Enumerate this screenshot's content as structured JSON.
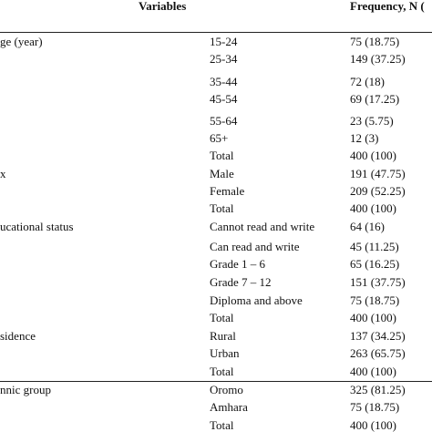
{
  "table": {
    "header": {
      "variables": "Variables",
      "frequency": "Frequency, N ("
    },
    "groups": [
      {
        "label": "ge (year)",
        "rows": [
          {
            "category": "15-24",
            "value": "75 (18.75)"
          },
          {
            "category": "25-34",
            "value": "149 (37.25)"
          },
          {
            "category": "35-44",
            "value": "72 (18)"
          },
          {
            "category": "45-54",
            "value": "69 (17.25)"
          },
          {
            "category": "55-64",
            "value": "23 (5.75)"
          },
          {
            "category": "65+",
            "value": "12 (3)"
          },
          {
            "category": "Total",
            "value": "400 (100)"
          }
        ]
      },
      {
        "label": "x",
        "rows": [
          {
            "category": "Male",
            "value": "191 (47.75)"
          },
          {
            "category": "Female",
            "value": "209 (52.25)"
          },
          {
            "category": "Total",
            "value": "400 (100)"
          }
        ]
      },
      {
        "label": "ucational status",
        "rows": [
          {
            "category": "Cannot read and write",
            "value": "64 (16)"
          },
          {
            "category": "Can read and write",
            "value": "45 (11.25)"
          },
          {
            "category": "Grade 1 – 6",
            "value": "65 (16.25)"
          },
          {
            "category": "Grade 7 – 12",
            "value": "151 (37.75)"
          },
          {
            "category": "Diploma and above",
            "value": "75 (18.75)"
          },
          {
            "category": "Total",
            "value": "400 (100)"
          }
        ]
      },
      {
        "label": "sidence",
        "rows": [
          {
            "category": "Rural",
            "value": "137 (34.25)"
          },
          {
            "category": "Urban",
            "value": "263 (65.75)"
          },
          {
            "category": "Total",
            "value": "400 (100)"
          }
        ]
      },
      {
        "label": "nnic group",
        "rows": [
          {
            "category": "Oromo",
            "value": "325 (81.25)"
          },
          {
            "category": "Amhara",
            "value": "75 (18.75)"
          },
          {
            "category": "Total",
            "value": "400 (100)"
          }
        ]
      }
    ]
  }
}
